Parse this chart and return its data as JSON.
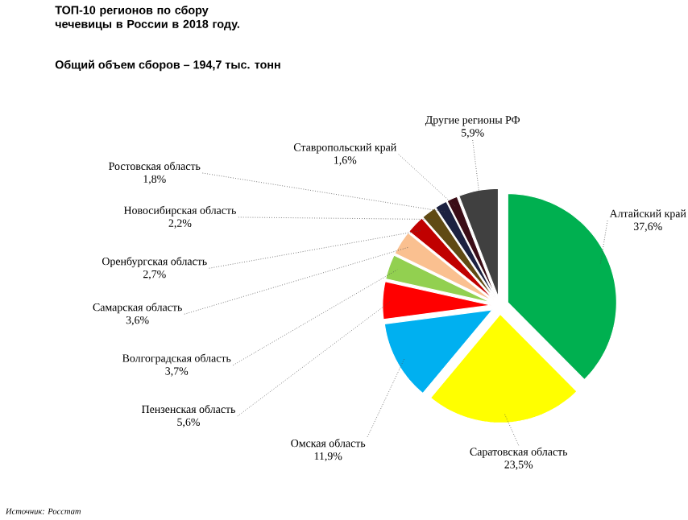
{
  "chart_data": {
    "type": "pie",
    "title": "ТОП-10 регионов по сбору чечевицы в России в 2018 году.",
    "subtitle": "Общий объем сборов – 194,7 тыс. тонн",
    "categories": [
      "Алтайский край",
      "Саратовская область",
      "Омская область",
      "Пензенская область",
      "Волгоградская область",
      "Самарская область",
      "Оренбургская область",
      "Новосибирская область",
      "Ростовская область",
      "Ставропольский край",
      "Другие регионы РФ"
    ],
    "values": [
      37.6,
      23.5,
      11.9,
      5.6,
      3.7,
      3.6,
      2.7,
      2.2,
      1.8,
      1.6,
      5.9
    ],
    "value_labels": [
      "37,6%",
      "23,5%",
      "11,9%",
      "5,6%",
      "3,7%",
      "3,6%",
      "2,7%",
      "2,2%",
      "1,8%",
      "1,6%",
      "5,9%"
    ],
    "colors": [
      "#00b050",
      "#ffff00",
      "#00b0f0",
      "#ff0000",
      "#92d050",
      "#fac090",
      "#c00000",
      "#604a14",
      "#1c2140",
      "#3b0d16",
      "#404040"
    ],
    "annotations": [
      "Источник:  Росстат"
    ]
  }
}
